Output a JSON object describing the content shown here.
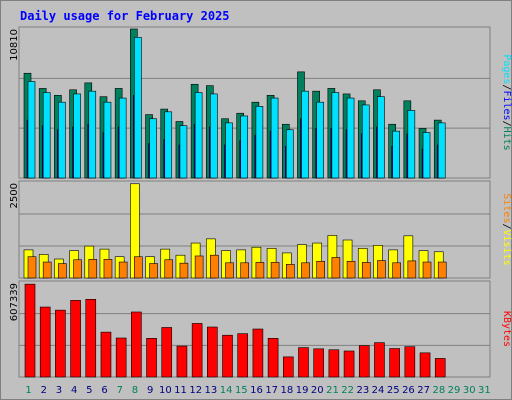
{
  "title": "Daily usage for February 2025",
  "colors": {
    "background": "#c0c0c0",
    "hits": "#00805c",
    "files": "#0000ff",
    "pages": "#00e0ff",
    "visits": "#ffff00",
    "sites": "#ff8000",
    "kbytes": "#ff0000",
    "title": "#0000ff",
    "day": "#000080",
    "weekend": "#00805c"
  },
  "chart_data": [
    {
      "type": "bar",
      "panel": "hits_files_pages",
      "ymax_label": "10810",
      "ymax": 10810,
      "categories": [
        "1",
        "2",
        "3",
        "4",
        "5",
        "6",
        "7",
        "8",
        "9",
        "10",
        "11",
        "12",
        "13",
        "14",
        "15",
        "16",
        "17",
        "18",
        "19",
        "20",
        "21",
        "22",
        "23",
        "24",
        "25",
        "26",
        "27",
        "28",
        "29",
        "30",
        "31"
      ],
      "legend": [
        "Pages",
        "/",
        "Files",
        "/",
        "Hits"
      ],
      "series": [
        {
          "name": "Hits",
          "values": [
            7600,
            6500,
            6000,
            6400,
            6900,
            5900,
            6500,
            10810,
            4600,
            5000,
            4100,
            6800,
            6700,
            4300,
            4700,
            5500,
            6000,
            3900,
            7700,
            6300,
            6500,
            6100,
            5600,
            6400,
            3900,
            5600,
            3600,
            4200,
            0,
            0,
            0
          ]
        },
        {
          "name": "Files",
          "values": [
            4200,
            3800,
            3500,
            3700,
            3900,
            3300,
            3700,
            6000,
            2500,
            2800,
            2400,
            3900,
            3700,
            2400,
            2700,
            3100,
            3400,
            2300,
            4300,
            3600,
            3600,
            3500,
            3200,
            3700,
            2300,
            3200,
            2100,
            2400,
            0,
            0,
            0
          ]
        },
        {
          "name": "Pages",
          "values": [
            7000,
            6200,
            5500,
            6100,
            6300,
            5500,
            5800,
            10200,
            4300,
            4800,
            3800,
            6200,
            6100,
            4000,
            4500,
            5200,
            5800,
            3500,
            6300,
            5500,
            6200,
            5800,
            5300,
            5900,
            3400,
            4900,
            3300,
            4000,
            0,
            0,
            0
          ]
        }
      ]
    },
    {
      "type": "bar",
      "panel": "visits_sites",
      "ymax_label": "2500",
      "ymax": 2500,
      "categories": [
        "1",
        "2",
        "3",
        "4",
        "5",
        "6",
        "7",
        "8",
        "9",
        "10",
        "11",
        "12",
        "13",
        "14",
        "15",
        "16",
        "17",
        "18",
        "19",
        "20",
        "21",
        "22",
        "23",
        "24",
        "25",
        "26",
        "27",
        "28",
        "29",
        "30",
        "31"
      ],
      "legend": [
        "Sites",
        "/",
        "Visits"
      ],
      "series": [
        {
          "name": "Visits",
          "values": [
            740,
            620,
            500,
            720,
            840,
            760,
            560,
            2480,
            560,
            760,
            600,
            920,
            1030,
            720,
            740,
            810,
            780,
            660,
            880,
            920,
            1120,
            1000,
            780,
            860,
            740,
            1110,
            720,
            690,
            0,
            0,
            0
          ]
        },
        {
          "name": "Sites",
          "values": [
            560,
            420,
            380,
            480,
            490,
            490,
            420,
            560,
            380,
            480,
            390,
            580,
            600,
            400,
            400,
            410,
            410,
            360,
            400,
            440,
            540,
            440,
            410,
            460,
            400,
            450,
            420,
            420,
            0,
            0,
            0
          ]
        }
      ]
    },
    {
      "type": "bar",
      "panel": "kbytes",
      "ymax_label": "607339",
      "ymax": 607339,
      "categories": [
        "1",
        "2",
        "3",
        "4",
        "5",
        "6",
        "7",
        "8",
        "9",
        "10",
        "11",
        "12",
        "13",
        "14",
        "15",
        "16",
        "17",
        "18",
        "19",
        "20",
        "21",
        "22",
        "23",
        "24",
        "25",
        "26",
        "27",
        "28",
        "29",
        "30",
        "31"
      ],
      "legend": [
        "KBytes"
      ],
      "series": [
        {
          "name": "KBytes",
          "values": [
            600000,
            452000,
            432000,
            495000,
            502000,
            290000,
            252000,
            420000,
            250000,
            320000,
            200000,
            346000,
            323000,
            270000,
            280000,
            310000,
            250000,
            130000,
            190000,
            182000,
            176000,
            168000,
            203000,
            222000,
            184000,
            196000,
            156000,
            120000,
            0,
            0,
            0
          ]
        }
      ]
    }
  ]
}
